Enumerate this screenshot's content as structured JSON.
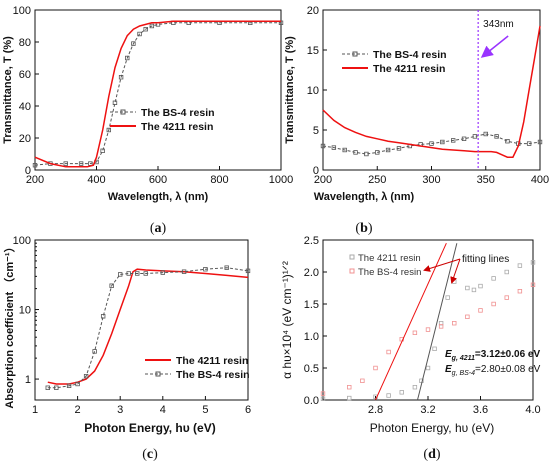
{
  "chart_data": [
    {
      "type": "line",
      "panel_label": "(a)",
      "panel_letter": "a",
      "xlabel": "Wavelength, λ (nm)",
      "ylabel": "Transmittance, T (%)",
      "xlim": [
        200,
        1000
      ],
      "ylim": [
        0,
        100
      ],
      "xticks": [
        "200",
        "400",
        "600",
        "800",
        "1000"
      ],
      "yticks": [
        "0",
        "20",
        "40",
        "60",
        "80",
        "100"
      ],
      "legend_position": "center-right",
      "series": [
        {
          "name": "The BS-4 resin",
          "color": "#555555",
          "style": "dashed-square",
          "x": [
            200,
            250,
            300,
            350,
            380,
            400,
            420,
            440,
            460,
            480,
            500,
            520,
            540,
            560,
            580,
            600,
            650,
            700,
            800,
            900,
            1000
          ],
          "y": [
            3,
            4,
            4,
            4,
            4,
            5,
            12,
            25,
            42,
            58,
            70,
            79,
            85,
            88,
            90,
            91,
            92,
            92,
            92,
            92,
            92
          ]
        },
        {
          "name": "The 4211 resin",
          "color": "#ee1111",
          "style": "solid",
          "x": [
            200,
            250,
            300,
            350,
            370,
            390,
            400,
            420,
            440,
            460,
            480,
            500,
            520,
            540,
            560,
            580,
            600,
            650,
            700,
            800,
            900,
            1000
          ],
          "y": [
            8,
            4,
            2,
            2,
            2,
            3,
            8,
            25,
            46,
            64,
            76,
            84,
            88,
            90,
            91,
            92,
            92,
            93,
            93,
            93,
            93,
            93
          ]
        }
      ]
    },
    {
      "type": "line",
      "panel_label": "(b)",
      "panel_letter": "b",
      "xlabel": "Wavelength, λ (nm)",
      "ylabel": "Transmittance, T (%)",
      "xlim": [
        200,
        400
      ],
      "ylim": [
        0,
        20
      ],
      "xticks": [
        "200",
        "250",
        "300",
        "350",
        "400"
      ],
      "yticks": [
        "0",
        "5",
        "10",
        "15",
        "20"
      ],
      "legend_position": "center-left",
      "annotation": {
        "text": "343nm",
        "x": 343,
        "color": "#9933ff"
      },
      "series": [
        {
          "name": "The BS-4 resin",
          "color": "#555555",
          "style": "dashed-square",
          "x": [
            200,
            210,
            220,
            230,
            240,
            250,
            260,
            270,
            280,
            290,
            300,
            310,
            320,
            330,
            340,
            350,
            360,
            370,
            380,
            390,
            400
          ],
          "y": [
            3,
            2.8,
            2.5,
            2.2,
            2.0,
            2.2,
            2.5,
            2.7,
            3.0,
            3.2,
            3.3,
            3.5,
            3.7,
            3.9,
            4.2,
            4.5,
            4.2,
            3.6,
            3.3,
            3.3,
            3.5
          ]
        },
        {
          "name": "The 4211 resin",
          "color": "#ee1111",
          "style": "solid",
          "x": [
            200,
            210,
            220,
            230,
            240,
            250,
            260,
            270,
            280,
            290,
            300,
            310,
            320,
            330,
            340,
            350,
            355,
            360,
            365,
            370,
            375,
            380,
            385,
            390,
            395,
            400
          ],
          "y": [
            7.5,
            6.2,
            5.3,
            4.7,
            4.2,
            3.9,
            3.6,
            3.4,
            3.2,
            3.0,
            2.8,
            2.6,
            2.5,
            2.4,
            2.3,
            2.3,
            2.3,
            2.2,
            1.9,
            1.6,
            1.6,
            3.0,
            6.0,
            10.0,
            14.0,
            18.0
          ]
        }
      ]
    },
    {
      "type": "line",
      "panel_label": "(c)",
      "panel_letter": "c",
      "xlabel": "Photon Energy, hυ (eV)",
      "ylabel": "Absorption coefficient （cm⁻¹）",
      "xlim": [
        1,
        6
      ],
      "ylim": [
        0.5,
        100
      ],
      "yscale": "log",
      "xticks": [
        "1",
        "2",
        "3",
        "4",
        "5",
        "6"
      ],
      "yticks": [
        "1",
        "10",
        "100"
      ],
      "legend_position": "bottom-right",
      "series": [
        {
          "name": "The 4211 resin",
          "color": "#ee1111",
          "style": "solid",
          "x": [
            1.3,
            1.5,
            1.8,
            2.0,
            2.2,
            2.4,
            2.6,
            2.8,
            3.0,
            3.2,
            3.3,
            3.4,
            3.6,
            4.0,
            4.5,
            5.0,
            5.5,
            6.0
          ],
          "y": [
            0.9,
            0.85,
            0.85,
            0.9,
            1.0,
            1.3,
            2.2,
            4.5,
            10,
            22,
            35,
            38,
            37,
            36,
            35,
            33,
            31,
            29
          ]
        },
        {
          "name": "The BS-4 resin",
          "color": "#555555",
          "style": "dashed-square",
          "x": [
            1.3,
            1.5,
            1.8,
            2.0,
            2.2,
            2.4,
            2.6,
            2.8,
            3.0,
            3.2,
            3.4,
            3.6,
            4.0,
            4.5,
            5.0,
            5.5,
            6.0
          ],
          "y": [
            0.75,
            0.75,
            0.8,
            0.85,
            1.1,
            2.5,
            8,
            22,
            32,
            33,
            33,
            33,
            34,
            35,
            38,
            40,
            36
          ]
        }
      ]
    },
    {
      "type": "line",
      "panel_label": "(d)",
      "panel_letter": "d",
      "xlabel": "Photon Energy, hυ (eV)",
      "ylabel": "α hυ×10⁴ (eV cm⁻¹)¹ᐟ²",
      "xlim": [
        2.4,
        4.0
      ],
      "ylim": [
        0,
        2.5
      ],
      "xticks": [
        "2.8",
        "3.2",
        "3.6",
        "4.0"
      ],
      "yticks": [
        "0.0",
        "0.5",
        "1.0",
        "1.5",
        "2.0",
        "2.5"
      ],
      "legend_position": "top-left",
      "annotation": {
        "text": "fitting lines"
      },
      "eg_4211": "=3.12±0.06 eV",
      "eg_bs4": "=2.80±0.08 eV",
      "series": [
        {
          "name": "The 4211 resin",
          "color": "#aaaaaa",
          "style": "square-markers",
          "x": [
            2.4,
            2.6,
            2.8,
            2.9,
            3.0,
            3.1,
            3.15,
            3.2,
            3.25,
            3.3,
            3.35,
            3.4,
            3.5,
            3.55,
            3.6,
            3.7,
            3.8,
            3.9,
            4.0
          ],
          "y": [
            0.02,
            0.03,
            0.05,
            0.07,
            0.12,
            0.2,
            0.3,
            0.5,
            0.8,
            1.2,
            1.6,
            1.85,
            1.75,
            1.72,
            1.78,
            1.9,
            2.0,
            2.1,
            2.15
          ]
        },
        {
          "name": "The BS-4 resin",
          "color": "#f09090",
          "style": "square-markers",
          "x": [
            2.4,
            2.6,
            2.7,
            2.8,
            2.9,
            3.0,
            3.1,
            3.2,
            3.3,
            3.4,
            3.5,
            3.6,
            3.7,
            3.8,
            3.9,
            4.0
          ],
          "y": [
            0.1,
            0.2,
            0.3,
            0.5,
            0.75,
            0.95,
            1.05,
            1.1,
            1.15,
            1.2,
            1.3,
            1.4,
            1.5,
            1.6,
            1.7,
            1.8
          ]
        }
      ],
      "fit_lines": [
        {
          "name": "4211 fit",
          "color": "#555555",
          "x": [
            3.12,
            3.42
          ],
          "y": [
            0,
            2.45
          ]
        },
        {
          "name": "BS-4 fit",
          "color": "#ee1111",
          "x": [
            2.8,
            3.34
          ],
          "y": [
            0,
            2.45
          ]
        }
      ]
    }
  ]
}
